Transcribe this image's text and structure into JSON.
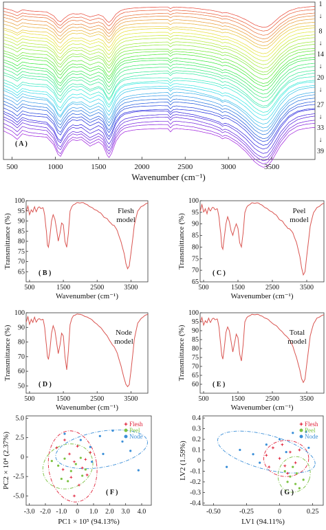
{
  "chart_data": [
    {
      "panel": "A",
      "type": "line",
      "panel_label": "( A )",
      "xlabel": "Wavenumber (cm⁻¹)",
      "xlim": [
        400,
        4000
      ],
      "xticks": [
        500,
        1000,
        1500,
        2000,
        2500,
        3000,
        3500
      ],
      "spectra_count": 39,
      "right_labels": [
        {
          "text": "1",
          "at_spectrum": 1
        },
        {
          "text": "↓",
          "at_spectrum": 4
        },
        {
          "text": "8",
          "at_spectrum": 8
        },
        {
          "text": "↓",
          "at_spectrum": 11
        },
        {
          "text": "14",
          "at_spectrum": 14
        },
        {
          "text": "↓",
          "at_spectrum": 17
        },
        {
          "text": "20",
          "at_spectrum": 20
        },
        {
          "text": "↓",
          "at_spectrum": 23
        },
        {
          "text": "27",
          "at_spectrum": 27
        },
        {
          "text": "↓",
          "at_spectrum": 30
        },
        {
          "text": "33",
          "at_spectrum": 33
        },
        {
          "text": "↓",
          "at_spectrum": 36
        },
        {
          "text": "39",
          "at_spectrum": 39
        }
      ],
      "spectrum_profile": {
        "x": [
          400,
          500,
          560,
          620,
          700,
          800,
          900,
          980,
          1030,
          1060,
          1100,
          1150,
          1200,
          1250,
          1300,
          1350,
          1400,
          1450,
          1500,
          1550,
          1600,
          1620,
          1650,
          1700,
          1750,
          1800,
          1900,
          2000,
          2100,
          2200,
          2300,
          2330,
          2360,
          2400,
          2500,
          2600,
          2700,
          2800,
          2900,
          2930,
          2960,
          3000,
          3100,
          3200,
          3300,
          3350,
          3400,
          3450,
          3500,
          3600,
          3700,
          3800,
          3900,
          4000
        ],
        "y": [
          0.88,
          0.8,
          0.72,
          0.82,
          0.78,
          0.76,
          0.74,
          0.6,
          0.42,
          0.38,
          0.5,
          0.62,
          0.68,
          0.66,
          0.68,
          0.62,
          0.56,
          0.6,
          0.64,
          0.58,
          0.4,
          0.36,
          0.44,
          0.66,
          0.78,
          0.84,
          0.88,
          0.9,
          0.91,
          0.92,
          0.92,
          0.86,
          0.91,
          0.92,
          0.9,
          0.88,
          0.84,
          0.8,
          0.74,
          0.7,
          0.72,
          0.7,
          0.6,
          0.46,
          0.28,
          0.22,
          0.18,
          0.2,
          0.3,
          0.58,
          0.78,
          0.88,
          0.92,
          0.94
        ]
      }
    },
    {
      "panel": "B",
      "type": "line",
      "panel_label": "( B )",
      "annotation": "Flesh\nmodel",
      "xlabel": "Wavenumber (cm⁻¹)",
      "ylabel": "Transmittance (%)",
      "xlim": [
        400,
        4000
      ],
      "ylim": [
        60,
        100
      ],
      "xticks": [
        500,
        1500,
        2500,
        3500
      ],
      "yticks": [
        65,
        70,
        75,
        80,
        85,
        90,
        95,
        100
      ],
      "x": [
        400,
        450,
        500,
        550,
        600,
        650,
        700,
        800,
        900,
        950,
        1000,
        1030,
        1060,
        1100,
        1150,
        1200,
        1250,
        1300,
        1350,
        1400,
        1450,
        1500,
        1550,
        1600,
        1650,
        1700,
        1750,
        1800,
        1900,
        2000,
        2100,
        2200,
        2300,
        2400,
        2500,
        2600,
        2700,
        2800,
        2900,
        2950,
        3000,
        3100,
        3200,
        3300,
        3350,
        3400,
        3450,
        3500,
        3600,
        3700,
        3800,
        3900,
        4000
      ],
      "y": [
        95,
        97,
        93,
        96,
        94,
        97,
        95,
        97,
        96,
        93,
        85,
        78,
        77,
        82,
        90,
        93,
        91,
        86,
        80,
        84,
        89,
        88,
        80,
        77,
        84,
        95,
        97,
        98,
        99,
        99,
        99,
        98,
        97,
        96,
        95,
        94,
        92,
        91,
        89,
        88,
        88,
        85,
        80,
        74,
        69,
        66.5,
        68,
        74,
        88,
        95,
        97,
        98,
        99
      ]
    },
    {
      "panel": "C",
      "type": "line",
      "panel_label": "( C )",
      "annotation": "Peel\nmodel",
      "xlabel": "Wavenumber (cm⁻¹)",
      "ylabel": "Transmittance (%)",
      "xlim": [
        400,
        4000
      ],
      "ylim": [
        65,
        100
      ],
      "xticks": [
        500,
        1500,
        2500,
        3500
      ],
      "yticks": [
        65,
        70,
        75,
        80,
        85,
        90,
        95,
        100
      ],
      "x": [
        400,
        450,
        500,
        550,
        600,
        650,
        700,
        800,
        900,
        950,
        1000,
        1030,
        1060,
        1100,
        1150,
        1200,
        1250,
        1300,
        1350,
        1400,
        1450,
        1500,
        1550,
        1600,
        1650,
        1700,
        1750,
        1800,
        1900,
        2000,
        2100,
        2200,
        2300,
        2400,
        2500,
        2600,
        2700,
        2800,
        2900,
        2950,
        3000,
        3100,
        3200,
        3300,
        3350,
        3400,
        3450,
        3500,
        3600,
        3700,
        3800,
        3900,
        4000
      ],
      "y": [
        96,
        98,
        95,
        97,
        94,
        97,
        96,
        97,
        96,
        93,
        86,
        80,
        79,
        84,
        90,
        93,
        91,
        87,
        85,
        88,
        90,
        88,
        82,
        80,
        86,
        95,
        97,
        98,
        99,
        99,
        99,
        98,
        97,
        96,
        95,
        94,
        92,
        91,
        89,
        88,
        88,
        86,
        82,
        76,
        71,
        68,
        69.5,
        76,
        89,
        95,
        97,
        98,
        99
      ]
    },
    {
      "panel": "D",
      "type": "line",
      "panel_label": "( D )",
      "annotation": "Node\nmodel",
      "xlabel": "Wavenumber (cm⁻¹)",
      "ylabel": "Transmittance (%)",
      "xlim": [
        400,
        4000
      ],
      "ylim": [
        45,
        100
      ],
      "xticks": [
        500,
        1500,
        2500,
        3500
      ],
      "yticks": [
        50,
        60,
        70,
        80,
        90,
        100
      ],
      "x": [
        400,
        450,
        500,
        550,
        600,
        650,
        700,
        800,
        900,
        950,
        1000,
        1030,
        1060,
        1100,
        1150,
        1200,
        1250,
        1300,
        1350,
        1400,
        1450,
        1500,
        1550,
        1600,
        1650,
        1700,
        1750,
        1800,
        1900,
        2000,
        2100,
        2200,
        2300,
        2400,
        2500,
        2600,
        2700,
        2800,
        2900,
        2950,
        3000,
        3100,
        3200,
        3300,
        3350,
        3400,
        3450,
        3500,
        3600,
        3700,
        3800,
        3900,
        4000
      ],
      "y": [
        94,
        97,
        92,
        96,
        93,
        97,
        94,
        96,
        95,
        90,
        78,
        70,
        68,
        74,
        86,
        91,
        88,
        80,
        72,
        78,
        86,
        84,
        70,
        61,
        74,
        92,
        96,
        98,
        99,
        99,
        98,
        97,
        96,
        94,
        92,
        90,
        87,
        84,
        80,
        78,
        77,
        72,
        64,
        55,
        51,
        49.5,
        51,
        60,
        82,
        93,
        96,
        98,
        99
      ]
    },
    {
      "panel": "E",
      "type": "line",
      "panel_label": "( E )",
      "annotation": "Total\nmodel",
      "xlabel": "Wavenumber (cm⁻¹)",
      "ylabel": "Transmittance (%)",
      "xlim": [
        400,
        4000
      ],
      "ylim": [
        55,
        100
      ],
      "xticks": [
        500,
        1500,
        2500,
        3500
      ],
      "yticks": [
        60,
        65,
        70,
        75,
        80,
        85,
        90,
        95,
        100
      ],
      "x": [
        400,
        450,
        500,
        550,
        600,
        650,
        700,
        800,
        900,
        950,
        1000,
        1030,
        1060,
        1100,
        1150,
        1200,
        1250,
        1300,
        1350,
        1400,
        1450,
        1500,
        1550,
        1600,
        1650,
        1700,
        1750,
        1800,
        1900,
        2000,
        2100,
        2200,
        2300,
        2400,
        2500,
        2600,
        2700,
        2800,
        2900,
        2950,
        3000,
        3100,
        3200,
        3300,
        3350,
        3400,
        3450,
        3500,
        3600,
        3700,
        3800,
        3900,
        4000
      ],
      "y": [
        95,
        97,
        93,
        96,
        94,
        97,
        95,
        97,
        96,
        92,
        82,
        76,
        74,
        80,
        89,
        92,
        90,
        84,
        78,
        83,
        88,
        86,
        77,
        73,
        82,
        95,
        97,
        98,
        99,
        99,
        99,
        98,
        97,
        96,
        94,
        93,
        91,
        89,
        87,
        86,
        85,
        81,
        75,
        68,
        63,
        61,
        63,
        71,
        87,
        94,
        97,
        98,
        99
      ]
    },
    {
      "panel": "F",
      "type": "scatter",
      "panel_label": "( F )",
      "xlabel": "PC1 × 10⁵ (94.13%)",
      "ylabel": "PC2 × 10⁴ (2.37%)",
      "xlim": [
        -3.2,
        4.6
      ],
      "ylim": [
        -6.2,
        5.3
      ],
      "xticks": [
        "-3.0",
        "-2.0",
        "-1.0",
        "0",
        "1.0",
        "2.0",
        "3.0",
        "4.0"
      ],
      "yticks": [
        "-5.0",
        "-2.5",
        "0",
        "2.5",
        "5.0"
      ],
      "legend": {
        "position": "top-right",
        "entries": [
          "Flesh",
          "Peel",
          "Node"
        ]
      },
      "series": [
        {
          "name": "Flesh",
          "color": "#e0223a",
          "marker": "star",
          "points": [
            [
              -1.3,
              1.2
            ],
            [
              -0.8,
              2.2
            ],
            [
              -0.5,
              0.4
            ],
            [
              -0.2,
              -0.6
            ],
            [
              0.0,
              1.4
            ],
            [
              0.3,
              -1.4
            ],
            [
              0.5,
              -0.3
            ],
            [
              0.8,
              0.6
            ],
            [
              -0.9,
              -1.6
            ],
            [
              -0.4,
              -2.6
            ],
            [
              0.1,
              -3.6
            ],
            [
              -0.2,
              -5.0
            ],
            [
              0.6,
              -2.3
            ]
          ],
          "ellipse": {
            "cx": -0.3,
            "cy": -1.2,
            "rx": 1.5,
            "ry": 4.6,
            "angle": -8
          }
        },
        {
          "name": "Peel",
          "color": "#7cc242",
          "marker": "circle",
          "points": [
            [
              -1.6,
              -0.5
            ],
            [
              -1.2,
              -1.1
            ],
            [
              -0.8,
              -0.2
            ],
            [
              -0.4,
              -1.8
            ],
            [
              -0.1,
              -0.9
            ],
            [
              0.3,
              -2.4
            ],
            [
              -1.0,
              -2.8
            ],
            [
              0.5,
              -1.6
            ],
            [
              -0.6,
              -3.1
            ],
            [
              0.2,
              -0.1
            ]
          ],
          "ellipse": {
            "cx": -0.6,
            "cy": -1.2,
            "rx": 1.6,
            "ry": 2.8,
            "angle": -25
          }
        },
        {
          "name": "Node",
          "color": "#3b8fd8",
          "marker": "circle",
          "points": [
            [
              -0.8,
              3.0
            ],
            [
              0.2,
              2.2
            ],
            [
              0.8,
              1.3
            ],
            [
              1.4,
              2.7
            ],
            [
              2.2,
              3.4
            ],
            [
              2.8,
              2.0
            ],
            [
              3.3,
              0.8
            ],
            [
              3.8,
              -1.7
            ],
            [
              0.9,
              -0.6
            ],
            [
              1.6,
              0.4
            ]
          ],
          "ellipse": {
            "cx": 1.5,
            "cy": 1.0,
            "rx": 2.9,
            "ry": 2.3,
            "angle": -10
          }
        }
      ]
    },
    {
      "panel": "G",
      "type": "scatter",
      "panel_label": "( G )",
      "xlabel": "LV1 (94.11%)",
      "ylabel": "LV2 (1.59%)",
      "xlim": [
        -0.58,
        0.33
      ],
      "ylim": [
        -0.42,
        0.42
      ],
      "xticks": [
        "-0.50",
        "-0.25",
        "0",
        "0.25"
      ],
      "yticks": [
        "-0.4",
        "-0.3",
        "-0.2",
        "-0.1",
        "0",
        "0.1",
        "0.2",
        "0.3",
        "0.4"
      ],
      "legend": {
        "position": "top-right",
        "entries": [
          "Flesh",
          "Peel",
          "Node"
        ]
      },
      "series": [
        {
          "name": "Flesh",
          "color": "#e0223a",
          "marker": "star",
          "points": [
            [
              -0.1,
              0.05
            ],
            [
              -0.05,
              0.12
            ],
            [
              0.0,
              0.02
            ],
            [
              0.04,
              -0.05
            ],
            [
              0.08,
              0.08
            ],
            [
              0.12,
              -0.02
            ],
            [
              0.02,
              0.15
            ],
            [
              -0.08,
              -0.06
            ],
            [
              0.15,
              0.1
            ],
            [
              0.06,
              -0.12
            ]
          ],
          "ellipse": {
            "cx": 0.05,
            "cy": 0.02,
            "rx": 0.17,
            "ry": 0.17,
            "angle": 0
          }
        },
        {
          "name": "Peel",
          "color": "#7cc242",
          "marker": "circle",
          "points": [
            [
              0.04,
              -0.1
            ],
            [
              0.08,
              -0.15
            ],
            [
              0.12,
              -0.22
            ],
            [
              0.15,
              -0.26
            ],
            [
              0.1,
              -0.06
            ],
            [
              0.18,
              -0.18
            ],
            [
              0.06,
              -0.2
            ],
            [
              0.13,
              -0.12
            ]
          ],
          "ellipse": {
            "cx": 0.11,
            "cy": -0.13,
            "rx": 0.12,
            "ry": 0.17,
            "angle": 20
          }
        },
        {
          "name": "Node",
          "color": "#3b8fd8",
          "marker": "circle",
          "points": [
            [
              -0.3,
              0.1
            ],
            [
              -0.2,
              0.06
            ],
            [
              -0.1,
              0.15
            ],
            [
              0.0,
              0.2
            ],
            [
              0.1,
              0.26
            ],
            [
              0.2,
              0.27
            ],
            [
              -0.4,
              -0.06
            ],
            [
              -0.15,
              -0.02
            ],
            [
              0.05,
              0.08
            ],
            [
              0.22,
              0.12
            ]
          ],
          "ellipse": {
            "cx": -0.1,
            "cy": 0.08,
            "rx": 0.38,
            "ry": 0.16,
            "angle": 15
          }
        }
      ]
    }
  ]
}
